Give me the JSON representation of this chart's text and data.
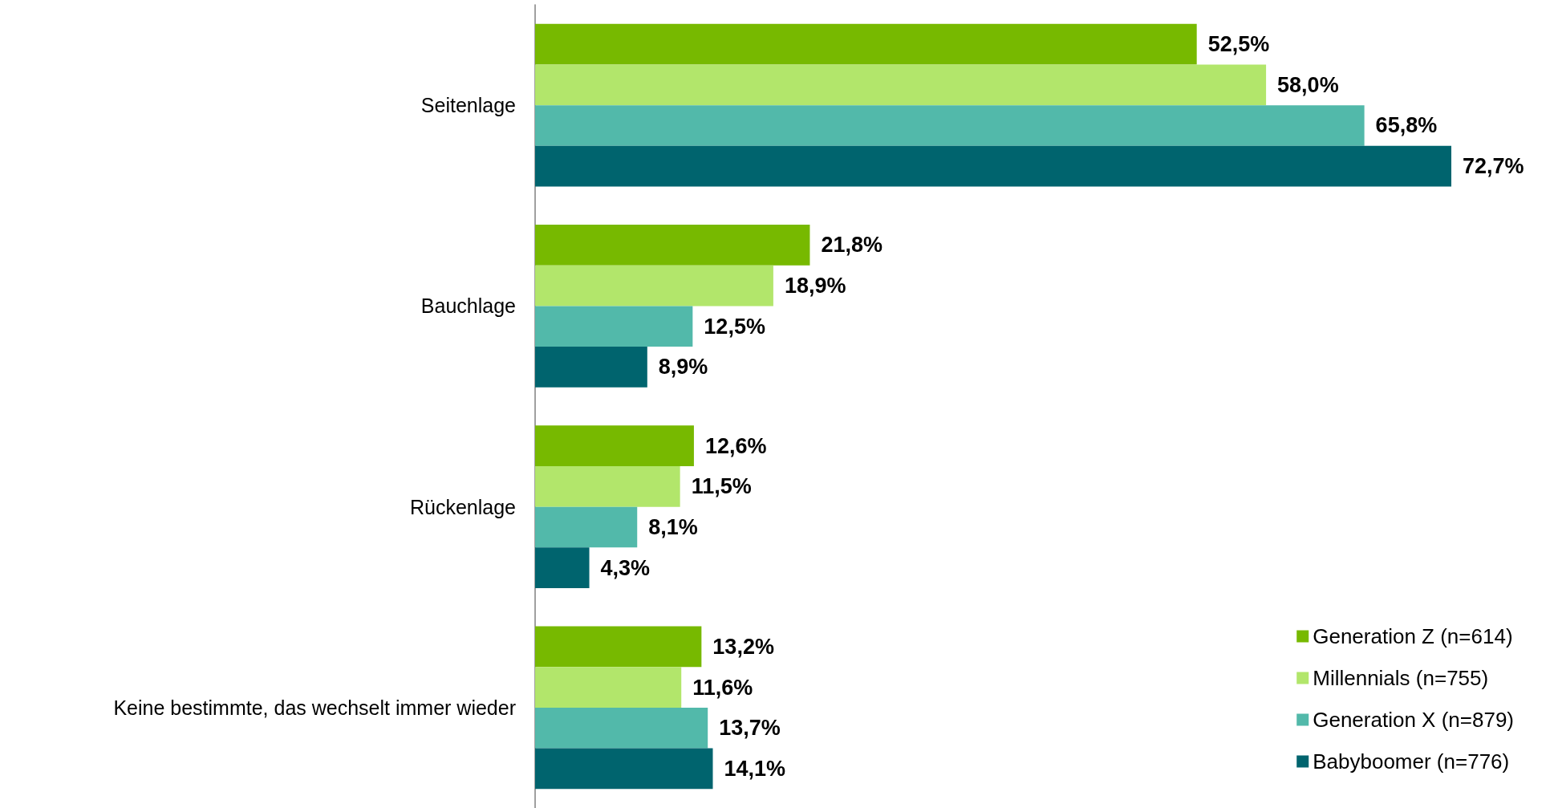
{
  "chart_data": {
    "type": "bar",
    "orientation": "horizontal",
    "categories": [
      "Seitenlage",
      "Bauchlage",
      "Rückenlage",
      "Keine bestimmte, das wechselt immer wieder"
    ],
    "series": [
      {
        "name": "Generation Z (n=614)",
        "color": "#77b900",
        "values": [
          52.5,
          21.8,
          12.6,
          13.2
        ],
        "value_labels": [
          "52,5%",
          "21,8%",
          "12,6%",
          "13,2%"
        ]
      },
      {
        "name": "Millennials (n=755)",
        "color": "#b2e66b",
        "values": [
          58.0,
          18.9,
          11.5,
          11.6
        ],
        "value_labels": [
          "58,0%",
          "18,9%",
          "11,5%",
          "11,6%"
        ]
      },
      {
        "name": "Generation X (n=879)",
        "color": "#52b9aa",
        "values": [
          65.8,
          12.5,
          8.1,
          13.7
        ],
        "value_labels": [
          "65,8%",
          "12,5%",
          "8,1%",
          "13,7%"
        ]
      },
      {
        "name": "Babyboomer (n=776)",
        "color": "#00646e",
        "values": [
          72.7,
          8.9,
          4.3,
          14.1
        ],
        "value_labels": [
          "72,7%",
          "8,9%",
          "4,3%",
          "14,1%"
        ]
      }
    ],
    "legend": "bottom right"
  }
}
